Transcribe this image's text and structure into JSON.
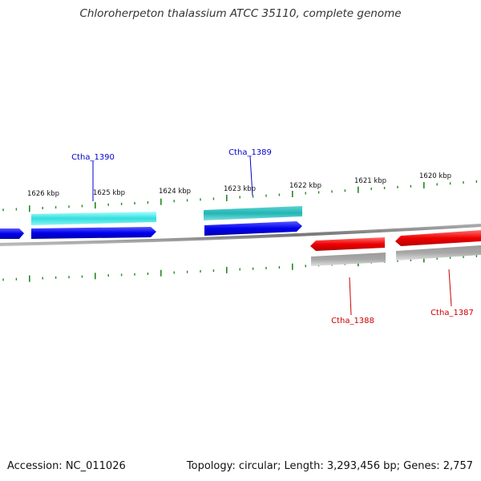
{
  "title": "Chloroherpeton thalassium ATCC 35110, complete genome",
  "footer": {
    "accession": "Accession: NC_011026",
    "summary": "Topology: circular; Length: 3,293,456 bp; Genes: 2,757"
  },
  "scale_ticks": [
    "1626 kbp",
    "1625 kbp",
    "1624 kbp",
    "1623 kbp",
    "1622 kbp",
    "1621 kbp",
    "1620 kbp"
  ],
  "genes": [
    {
      "name": "Ctha_1390",
      "strand": "forward",
      "color": "#0000cc"
    },
    {
      "name": "Ctha_1389",
      "strand": "forward",
      "color": "#0000cc"
    },
    {
      "name": "Ctha_1388",
      "strand": "reverse",
      "color": "#dd0000"
    },
    {
      "name": "Ctha_1387",
      "strand": "reverse",
      "color": "#dd0000"
    }
  ],
  "colors": {
    "forward_cds": "#0000ee",
    "forward_cds_light": "#33dddd",
    "forward_cds_teal": "#22b5b5",
    "reverse_cds": "#ee0000",
    "reverse_cds_gray": "#a8a8a8",
    "backbone": "#777777",
    "ticks": "#228822"
  }
}
